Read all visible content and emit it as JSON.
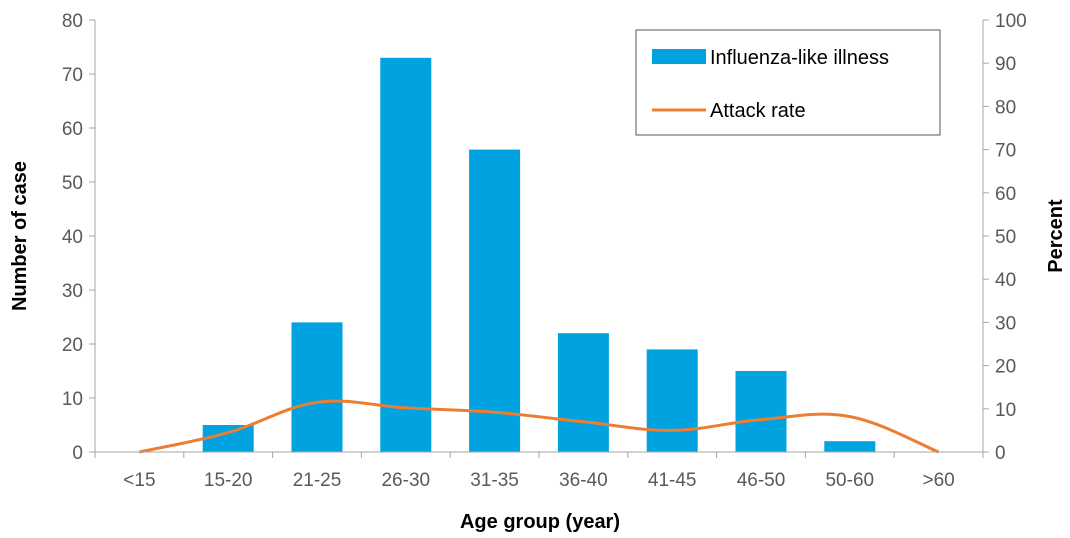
{
  "chart_data": {
    "type": "bar",
    "categories": [
      "<15",
      "15-20",
      "21-25",
      "26-30",
      "31-35",
      "36-40",
      "41-45",
      "46-50",
      "50-60",
      ">60"
    ],
    "xlabel": "Age group (year)",
    "ylabel": "Number of case",
    "y2label": "Percent",
    "ylim": [
      0,
      80
    ],
    "y2lim": [
      0,
      100
    ],
    "yticks": [
      0,
      10,
      20,
      30,
      40,
      50,
      60,
      70,
      80
    ],
    "y2ticks": [
      0,
      10,
      20,
      30,
      40,
      50,
      60,
      70,
      80,
      90,
      100
    ],
    "grid": false,
    "legend_position": "top-right",
    "series": [
      {
        "name": "Influenza-like illness",
        "type": "bar",
        "axis": "left",
        "color": "#00a2e0",
        "values": [
          0,
          5,
          24,
          73,
          56,
          22,
          19,
          15,
          2,
          0
        ]
      },
      {
        "name": "Attack rate",
        "type": "line",
        "axis": "right",
        "color": "#ed7d31",
        "values": [
          0,
          4.5,
          11.5,
          10.2,
          9.2,
          7.0,
          5.0,
          7.5,
          8.2,
          0
        ]
      }
    ]
  }
}
